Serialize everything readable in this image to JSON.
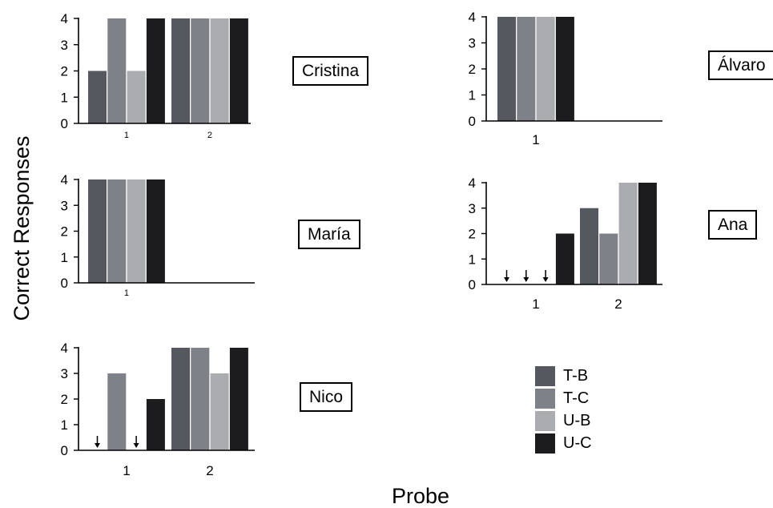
{
  "figure": {
    "ylabel": "Correct Responses",
    "xlabel": "Probe"
  },
  "colors": {
    "T-B": "#55585f",
    "T-C": "#7e8187",
    "U-B": "#aaacaf",
    "U-C": "#1c1c1e",
    "axis": "#000000"
  },
  "legend": [
    {
      "label": "T-B",
      "color": "#55585f"
    },
    {
      "label": "T-C",
      "color": "#7e8187"
    },
    {
      "label": "U-B",
      "color": "#aaacaf"
    },
    {
      "label": "U-C",
      "color": "#1c1c1e"
    }
  ],
  "chart_data": [
    {
      "type": "bar",
      "participant": "Cristina",
      "categories": [
        "1",
        "2"
      ],
      "series": [
        {
          "name": "T-B",
          "values": [
            2,
            4
          ]
        },
        {
          "name": "T-C",
          "values": [
            4,
            4
          ]
        },
        {
          "name": "U-B",
          "values": [
            2,
            4
          ]
        },
        {
          "name": "U-C",
          "values": [
            4,
            4
          ]
        }
      ],
      "yticks": [
        "0",
        "1",
        "2",
        "3",
        "4"
      ],
      "ylim": [
        0,
        4
      ],
      "no_response_arrows": []
    },
    {
      "type": "bar",
      "participant": "Álvaro",
      "categories": [
        "1"
      ],
      "series": [
        {
          "name": "T-B",
          "values": [
            4
          ]
        },
        {
          "name": "T-C",
          "values": [
            4
          ]
        },
        {
          "name": "U-B",
          "values": [
            4
          ]
        },
        {
          "name": "U-C",
          "values": [
            4
          ]
        }
      ],
      "yticks": [
        "0",
        "1",
        "2",
        "3",
        "4"
      ],
      "ylim": [
        0,
        4
      ],
      "no_response_arrows": []
    },
    {
      "type": "bar",
      "participant": "María",
      "categories": [
        "1"
      ],
      "series": [
        {
          "name": "T-B",
          "values": [
            4
          ]
        },
        {
          "name": "T-C",
          "values": [
            4
          ]
        },
        {
          "name": "U-B",
          "values": [
            4
          ]
        },
        {
          "name": "U-C",
          "values": [
            4
          ]
        }
      ],
      "yticks": [
        "0",
        "1",
        "2",
        "3",
        "4"
      ],
      "ylim": [
        0,
        4
      ],
      "no_response_arrows": []
    },
    {
      "type": "bar",
      "participant": "Ana",
      "categories": [
        "1",
        "2"
      ],
      "series": [
        {
          "name": "T-B",
          "values": [
            0,
            3
          ]
        },
        {
          "name": "T-C",
          "values": [
            0,
            2
          ]
        },
        {
          "name": "U-B",
          "values": [
            0,
            4
          ]
        },
        {
          "name": "U-C",
          "values": [
            2,
            4
          ]
        }
      ],
      "yticks": [
        "0",
        "1",
        "2",
        "3",
        "4"
      ],
      "ylim": [
        0,
        4
      ],
      "no_response_arrows": [
        {
          "probe": "1",
          "series": "T-B"
        },
        {
          "probe": "1",
          "series": "T-C"
        },
        {
          "probe": "1",
          "series": "U-B"
        }
      ]
    },
    {
      "type": "bar",
      "participant": "Nico",
      "categories": [
        "1",
        "2"
      ],
      "series": [
        {
          "name": "T-B",
          "values": [
            0,
            4
          ]
        },
        {
          "name": "T-C",
          "values": [
            3,
            4
          ]
        },
        {
          "name": "U-B",
          "values": [
            0,
            3
          ]
        },
        {
          "name": "U-C",
          "values": [
            2,
            4
          ]
        }
      ],
      "yticks": [
        "0",
        "1",
        "2",
        "3",
        "4"
      ],
      "ylim": [
        0,
        4
      ],
      "no_response_arrows": [
        {
          "probe": "1",
          "series": "T-B"
        },
        {
          "probe": "1",
          "series": "U-B"
        }
      ]
    }
  ]
}
